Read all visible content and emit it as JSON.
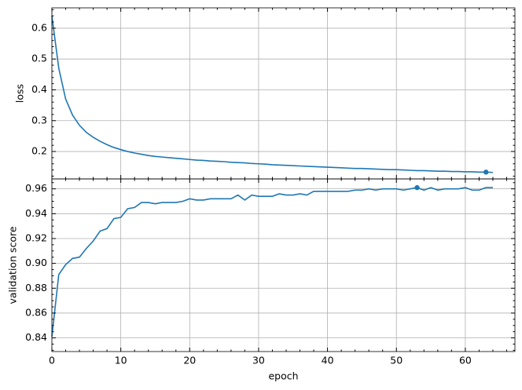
{
  "chart_data": [
    {
      "type": "line",
      "ylabel": "loss",
      "color": "#1f77b4",
      "grid": true,
      "show_xtick_labels": false,
      "xlim": [
        0,
        67.2
      ],
      "ylim": [
        0.111,
        0.666
      ],
      "xticks": [
        0,
        10,
        20,
        30,
        40,
        50,
        60
      ],
      "yticks": [
        0.2,
        0.3,
        0.4,
        0.5,
        0.6
      ],
      "x": [
        0,
        1,
        2,
        3,
        4,
        5,
        6,
        7,
        8,
        9,
        10,
        11,
        12,
        13,
        14,
        15,
        16,
        17,
        18,
        19,
        20,
        21,
        22,
        23,
        24,
        25,
        26,
        27,
        28,
        29,
        30,
        31,
        32,
        33,
        34,
        35,
        36,
        37,
        38,
        39,
        40,
        41,
        42,
        43,
        44,
        45,
        46,
        47,
        48,
        49,
        50,
        51,
        52,
        53,
        54,
        55,
        56,
        57,
        58,
        59,
        60,
        61,
        62,
        63,
        64
      ],
      "values": [
        0.64,
        0.47,
        0.37,
        0.318,
        0.285,
        0.262,
        0.246,
        0.233,
        0.222,
        0.213,
        0.206,
        0.2,
        0.195,
        0.191,
        0.187,
        0.184,
        0.182,
        0.18,
        0.178,
        0.176,
        0.174,
        0.172,
        0.171,
        0.169,
        0.168,
        0.167,
        0.165,
        0.164,
        0.163,
        0.161,
        0.16,
        0.159,
        0.157,
        0.156,
        0.155,
        0.154,
        0.153,
        0.152,
        0.151,
        0.15,
        0.149,
        0.148,
        0.147,
        0.146,
        0.145,
        0.145,
        0.144,
        0.143,
        0.142,
        0.141,
        0.141,
        0.14,
        0.139,
        0.138,
        0.138,
        0.137,
        0.136,
        0.136,
        0.135,
        0.135,
        0.134,
        0.134,
        0.133,
        0.133,
        0.132
      ],
      "markers": [
        {
          "x": 63,
          "y": 0.133
        }
      ]
    },
    {
      "type": "line",
      "ylabel": "validation score",
      "xlabel": "epoch",
      "color": "#1f77b4",
      "grid": true,
      "show_xtick_labels": true,
      "xlim": [
        0,
        67.2
      ],
      "ylim": [
        0.829,
        0.968
      ],
      "xticks": [
        0,
        10,
        20,
        30,
        40,
        50,
        60
      ],
      "yticks": [
        0.84,
        0.86,
        0.88,
        {
          "value": 0.9,
          "label": "0.90"
        },
        0.92,
        0.94,
        0.96
      ],
      "x": [
        0,
        1,
        2,
        3,
        4,
        5,
        6,
        7,
        8,
        9,
        10,
        11,
        12,
        13,
        14,
        15,
        16,
        17,
        18,
        19,
        20,
        21,
        22,
        23,
        24,
        25,
        26,
        27,
        28,
        29,
        30,
        31,
        32,
        33,
        34,
        35,
        36,
        37,
        38,
        39,
        40,
        41,
        42,
        43,
        44,
        45,
        46,
        47,
        48,
        49,
        50,
        51,
        52,
        53,
        54,
        55,
        56,
        57,
        58,
        59,
        60,
        61,
        62,
        63,
        64
      ],
      "values": [
        0.841,
        0.891,
        0.899,
        0.904,
        0.905,
        0.912,
        0.918,
        0.926,
        0.928,
        0.936,
        0.937,
        0.944,
        0.945,
        0.949,
        0.949,
        0.948,
        0.949,
        0.949,
        0.949,
        0.95,
        0.952,
        0.951,
        0.951,
        0.952,
        0.952,
        0.952,
        0.952,
        0.955,
        0.951,
        0.955,
        0.954,
        0.954,
        0.954,
        0.956,
        0.955,
        0.955,
        0.956,
        0.955,
        0.958,
        0.958,
        0.958,
        0.958,
        0.958,
        0.958,
        0.959,
        0.959,
        0.96,
        0.959,
        0.96,
        0.96,
        0.96,
        0.959,
        0.96,
        0.961,
        0.959,
        0.961,
        0.959,
        0.96,
        0.96,
        0.96,
        0.961,
        0.959,
        0.959,
        0.961,
        0.961
      ],
      "markers": [
        {
          "x": 53,
          "y": 0.961
        }
      ]
    }
  ]
}
